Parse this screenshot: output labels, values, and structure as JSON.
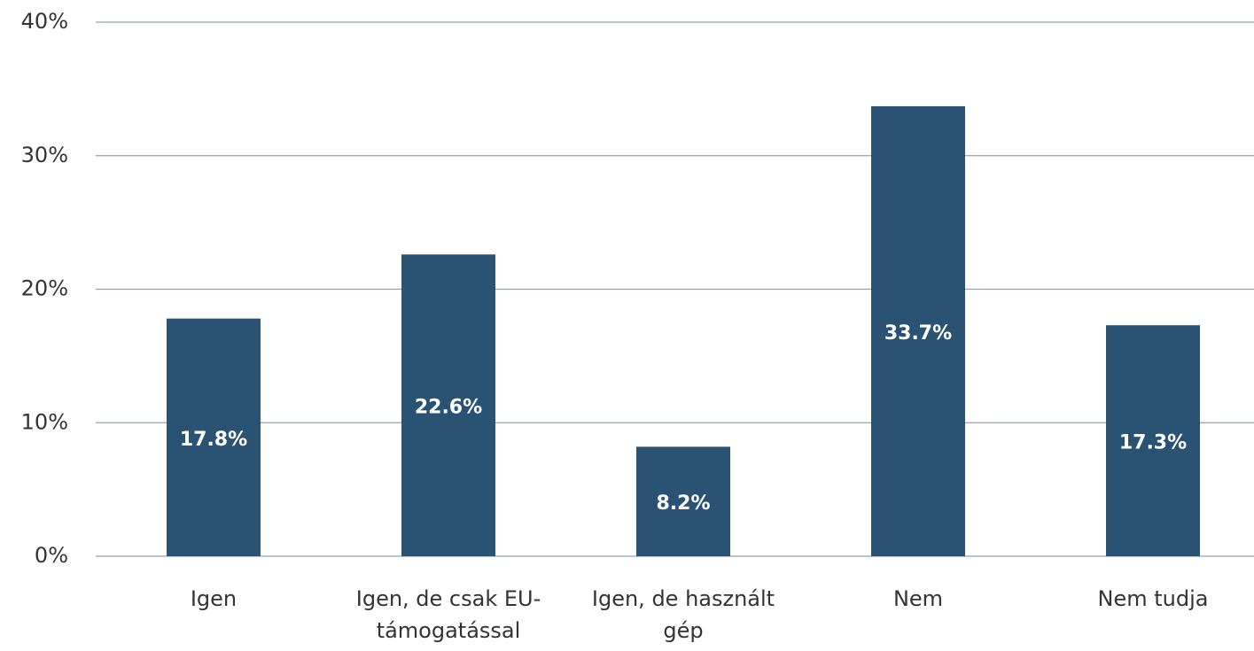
{
  "chart_data": {
    "type": "bar",
    "categories": [
      "Igen",
      "Igen, de csak EU-támogatással",
      "Igen, de használt gép",
      "Nem",
      "Nem tudja"
    ],
    "values": [
      17.8,
      22.6,
      8.2,
      33.7,
      17.3
    ],
    "value_labels": [
      "17.8%",
      "22.6%",
      "8.2%",
      "33.7%",
      "17.3%"
    ],
    "color": "#2a5273",
    "ylim": [
      0,
      40
    ],
    "yticks": [
      {
        "value": 0,
        "label": "0%"
      },
      {
        "value": 10,
        "label": "10%"
      },
      {
        "value": 20,
        "label": "20%"
      },
      {
        "value": 30,
        "label": "30%"
      },
      {
        "value": 40,
        "label": "40%"
      }
    ],
    "grid": true
  }
}
